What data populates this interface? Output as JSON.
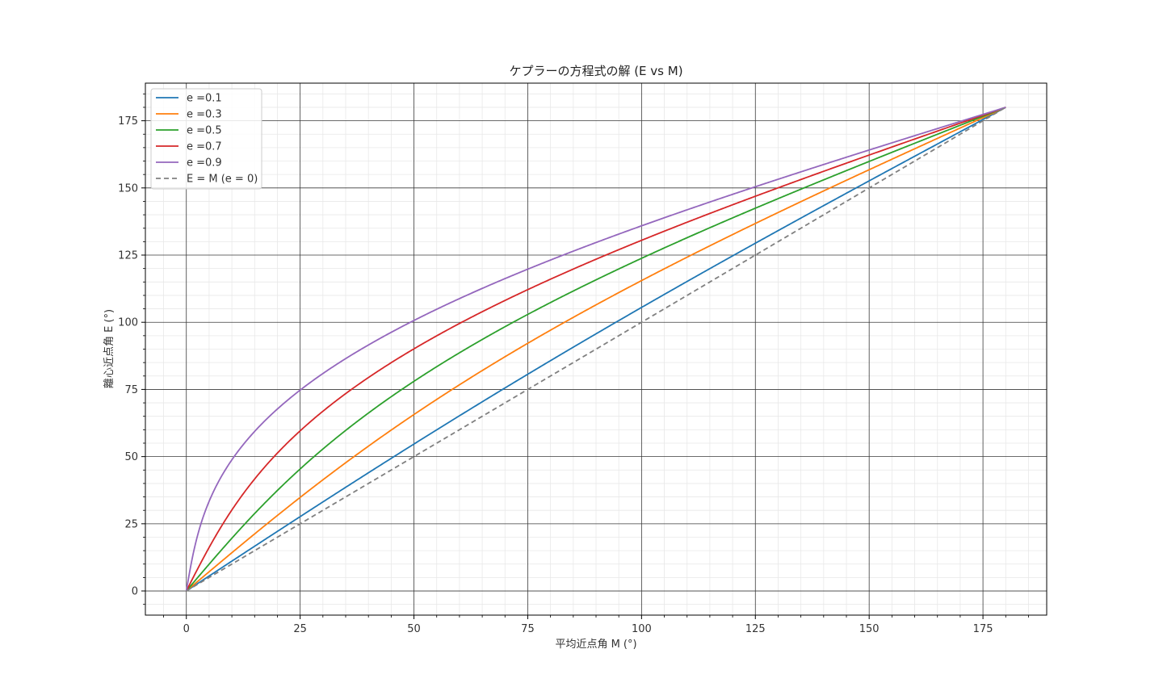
{
  "chart_data": {
    "type": "line",
    "title": "ケプラーの方程式の解 (E vs M)",
    "xlabel": "平均近点角 M (°)",
    "ylabel": "離心近点角 E (°)",
    "xlim": [
      -9,
      189
    ],
    "ylim": [
      -9,
      189
    ],
    "x_ticks": [
      0,
      25,
      50,
      75,
      100,
      125,
      150,
      175
    ],
    "y_ticks": [
      0,
      25,
      50,
      75,
      100,
      125,
      150,
      175
    ],
    "x_minor_step": 5,
    "y_minor_step": 5,
    "grid": true,
    "minor_grid": true,
    "legend_position": "top-left",
    "series": [
      {
        "name": "e =0.1",
        "eccentricity": 0.1,
        "color": "#1f77b4",
        "dashed": false
      },
      {
        "name": "e =0.3",
        "eccentricity": 0.3,
        "color": "#ff7f0e",
        "dashed": false
      },
      {
        "name": "e =0.5",
        "eccentricity": 0.5,
        "color": "#2ca02c",
        "dashed": false
      },
      {
        "name": "e =0.7",
        "eccentricity": 0.7,
        "color": "#d62728",
        "dashed": false
      },
      {
        "name": "e =0.9",
        "eccentricity": 0.9,
        "color": "#9467bd",
        "dashed": false
      },
      {
        "name": "E = M (e = 0)",
        "eccentricity": 0,
        "color": "#808080",
        "dashed": true
      }
    ],
    "x_range": [
      0,
      180
    ]
  }
}
